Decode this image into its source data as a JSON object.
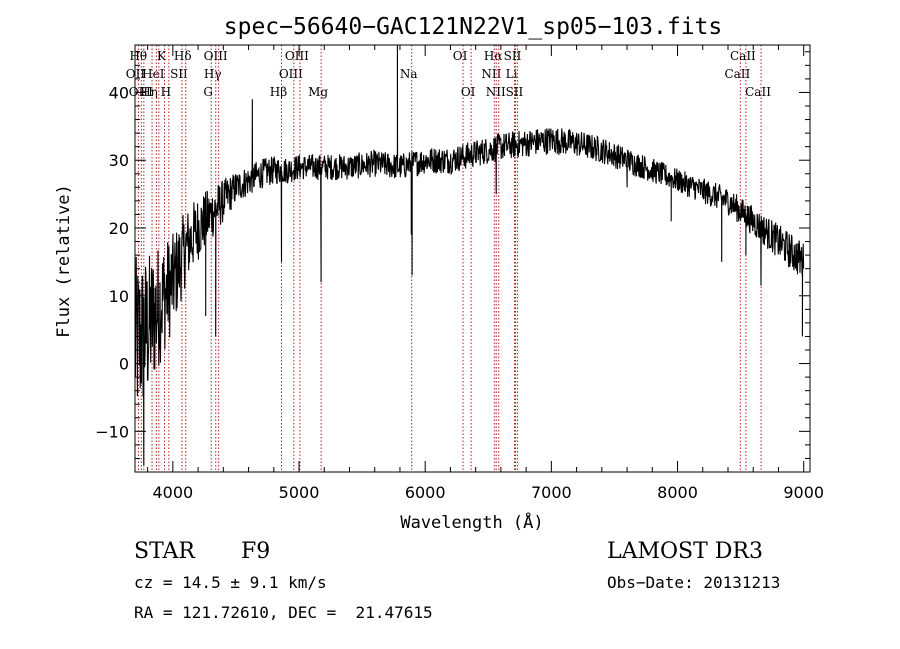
{
  "chart_data": {
    "type": "line",
    "title": "spec−56640−GAC121N22V1_sp05−103.fits",
    "xlabel": "Wavelength (Å)",
    "ylabel": "Flux (relative)",
    "xlim": [
      3700,
      9050
    ],
    "ylim": [
      -16,
      47
    ],
    "xticks": [
      4000,
      5000,
      6000,
      7000,
      8000,
      9000
    ],
    "xtick_labels": [
      "4000",
      "5000",
      "6000",
      "7000",
      "8000",
      "9000"
    ],
    "yticks": [
      -10,
      0,
      10,
      20,
      30,
      40
    ],
    "ytick_labels": [
      "−10",
      "0",
      "10",
      "20",
      "30",
      "40"
    ],
    "series": [
      {
        "name": "spectrum",
        "color": "#000000",
        "continuum": [
          [
            3700,
            3
          ],
          [
            3800,
            5
          ],
          [
            3900,
            9
          ],
          [
            4000,
            12
          ],
          [
            4100,
            17
          ],
          [
            4200,
            20
          ],
          [
            4300,
            22
          ],
          [
            4400,
            24
          ],
          [
            4500,
            26
          ],
          [
            4600,
            27
          ],
          [
            4700,
            28
          ],
          [
            4800,
            28.5
          ],
          [
            4900,
            28.5
          ],
          [
            5000,
            29
          ],
          [
            5200,
            29
          ],
          [
            5400,
            29
          ],
          [
            5600,
            29.5
          ],
          [
            5800,
            29
          ],
          [
            6000,
            30
          ],
          [
            6200,
            30
          ],
          [
            6400,
            31
          ],
          [
            6600,
            32
          ],
          [
            6800,
            32.5
          ],
          [
            7000,
            33
          ],
          [
            7200,
            32.5
          ],
          [
            7400,
            31.5
          ],
          [
            7600,
            30
          ],
          [
            7800,
            28.5
          ],
          [
            8000,
            27
          ],
          [
            8200,
            25.5
          ],
          [
            8400,
            24
          ],
          [
            8600,
            21
          ],
          [
            8800,
            18
          ],
          [
            9000,
            15
          ]
        ],
        "noise": [
          [
            3700,
            8
          ],
          [
            3800,
            7
          ],
          [
            3950,
            5
          ],
          [
            4100,
            3.5
          ],
          [
            4300,
            2.5
          ],
          [
            4500,
            1.5
          ],
          [
            5000,
            1.2
          ],
          [
            7000,
            1.3
          ],
          [
            8000,
            1.1
          ],
          [
            8500,
            1.3
          ],
          [
            9000,
            1.8
          ]
        ],
        "features": [
          {
            "x": 3770,
            "y": -15
          },
          {
            "x": 4260,
            "y": 7
          },
          {
            "x": 4340,
            "y": 4
          },
          {
            "x": 4630,
            "y": 39
          },
          {
            "x": 4861,
            "y": 15
          },
          {
            "x": 5175,
            "y": 12
          },
          {
            "x": 5780,
            "y": 48
          },
          {
            "x": 5890,
            "y": 19
          },
          {
            "x": 5896,
            "y": 13
          },
          {
            "x": 6563,
            "y": 25
          },
          {
            "x": 7600,
            "y": 26
          },
          {
            "x": 7950,
            "y": 21
          },
          {
            "x": 8350,
            "y": 15
          },
          {
            "x": 8542,
            "y": 16
          },
          {
            "x": 8662,
            "y": 11.5
          },
          {
            "x": 8990,
            "y": 4
          }
        ]
      }
    ],
    "line_markers": {
      "color": "#b22222",
      "lines": [
        {
          "wave": 3727,
          "label": "OII",
          "row": 1
        },
        {
          "wave": 3750,
          "label": "Hθ",
          "row": 0
        },
        {
          "wave": 3770,
          "label": "OIII",
          "row": 2
        },
        {
          "wave": 3835,
          "label": "Hη",
          "row": 2
        },
        {
          "wave": 3869,
          "label": "HeI",
          "row": 1
        },
        {
          "wave": 3889,
          "label": "",
          "row": 1
        },
        {
          "wave": 3934,
          "label": "K",
          "row": 0
        },
        {
          "wave": 3968,
          "label": "H",
          "row": 2
        },
        {
          "wave": 4072,
          "label": "SII",
          "row": 1
        },
        {
          "wave": 4102,
          "label": "Hδ",
          "row": 0
        },
        {
          "wave": 4304,
          "label": "G",
          "row": 2
        },
        {
          "wave": 4340,
          "label": "Hγ",
          "row": 1
        },
        {
          "wave": 4363,
          "label": "OIII",
          "row": 0
        },
        {
          "wave": 4861,
          "label": "Hβ",
          "row": 2
        },
        {
          "wave": 4959,
          "label": "OIII",
          "row": 1
        },
        {
          "wave": 5007,
          "label": "OIII",
          "row": 0
        },
        {
          "wave": 5175,
          "label": "Mg",
          "row": 2
        },
        {
          "wave": 5893,
          "label": "Na",
          "row": 1
        },
        {
          "wave": 6300,
          "label": "OI",
          "row": 0
        },
        {
          "wave": 6364,
          "label": "OI",
          "row": 2
        },
        {
          "wave": 6548,
          "label": "NII",
          "row": 1
        },
        {
          "wave": 6563,
          "label": "Hα",
          "row": 0
        },
        {
          "wave": 6583,
          "label": "NII",
          "row": 2
        },
        {
          "wave": 6708,
          "label": "Li",
          "row": 1
        },
        {
          "wave": 6716,
          "label": "SII",
          "row": 0
        },
        {
          "wave": 6731,
          "label": "SII",
          "row": 2
        },
        {
          "wave": 8498,
          "label": "CaII",
          "row": 1
        },
        {
          "wave": 8542,
          "label": "CaII",
          "row": 0
        },
        {
          "wave": 8662,
          "label": "CaII",
          "row": 2
        }
      ]
    }
  },
  "info": {
    "object_class": "STAR",
    "subclass": "F9",
    "survey": "LAMOST DR3",
    "redshift": "cz = 14.5 ± 9.1 km/s",
    "obs_date": "Obs−Date: 20131213",
    "coords": "RA = 121.72610, DEC =  21.47615"
  }
}
